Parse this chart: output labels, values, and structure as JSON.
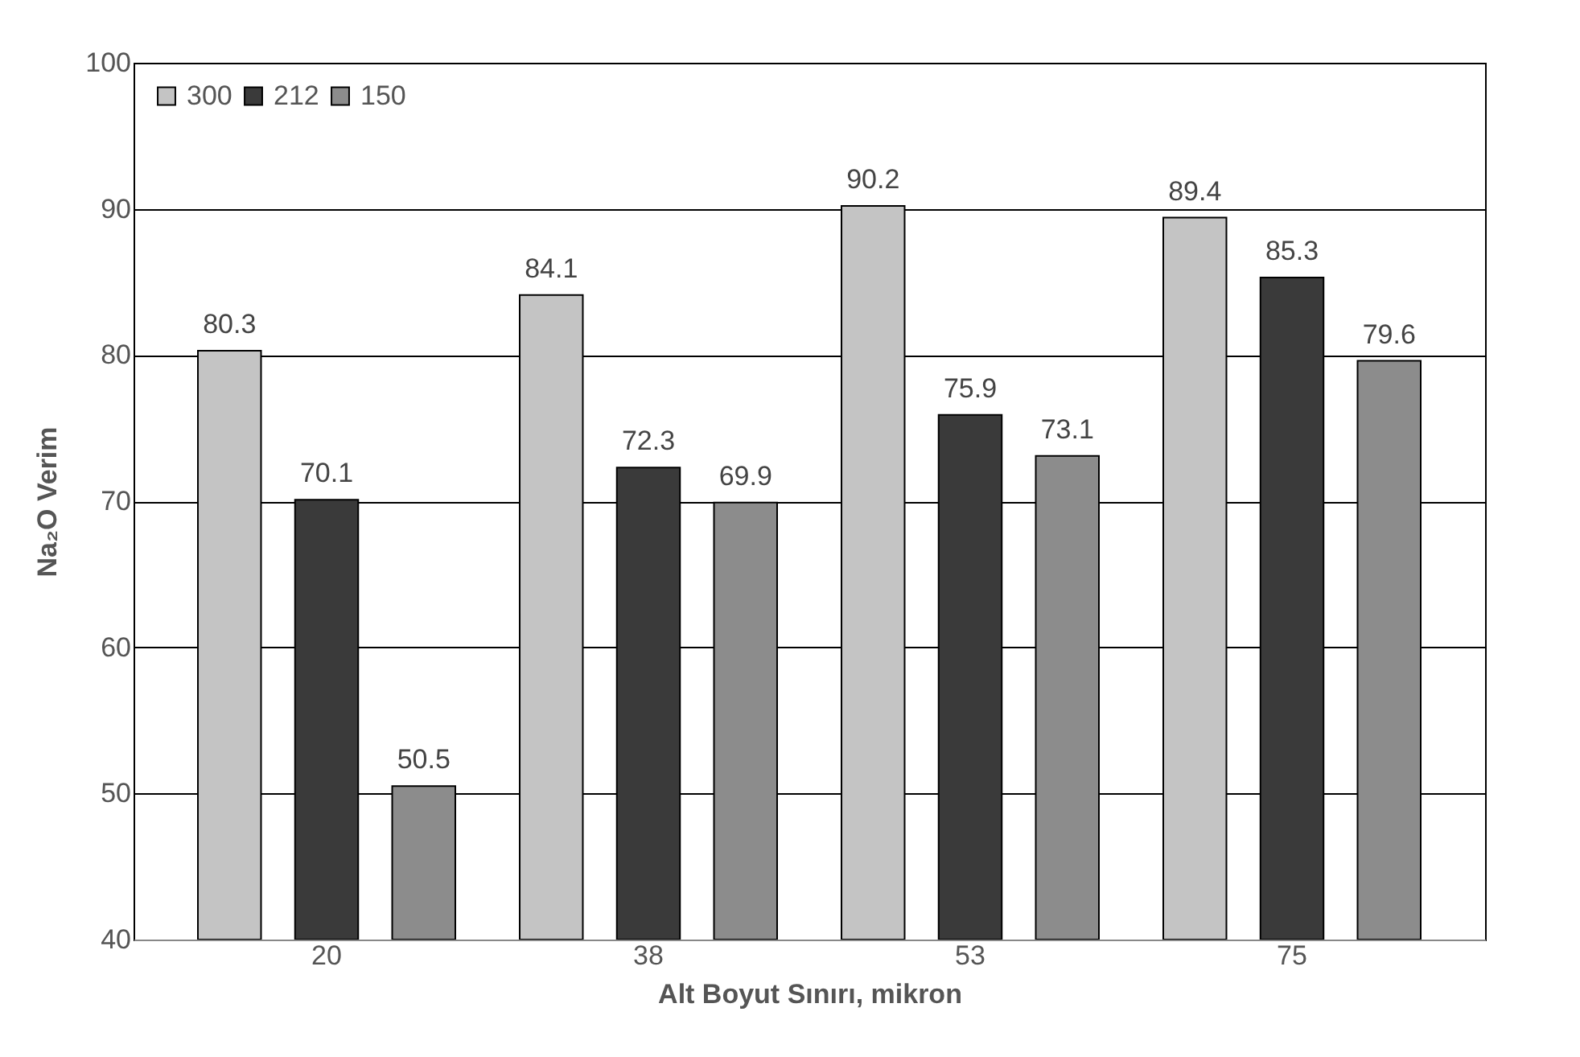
{
  "chart_data": {
    "type": "bar",
    "xlabel": "Alt  Boyut Sınırı, mikron",
    "ylabel": "Na₂O Verim",
    "categories": [
      "20",
      "38",
      "53",
      "75"
    ],
    "series": [
      {
        "name": "300",
        "color": "#c4c4c4",
        "values": [
          80.3,
          84.1,
          90.2,
          89.4
        ]
      },
      {
        "name": "212",
        "color": "#3a3a3a",
        "values": [
          70.1,
          72.3,
          75.9,
          85.3
        ]
      },
      {
        "name": "150",
        "color": "#8c8c8c",
        "values": [
          50.5,
          69.9,
          73.1,
          79.6
        ]
      }
    ],
    "ylim": [
      40,
      100
    ],
    "yticks": [
      40,
      50,
      60,
      70,
      80,
      90,
      100
    ],
    "grid": "y",
    "legend": "top left",
    "data_labels": true
  }
}
